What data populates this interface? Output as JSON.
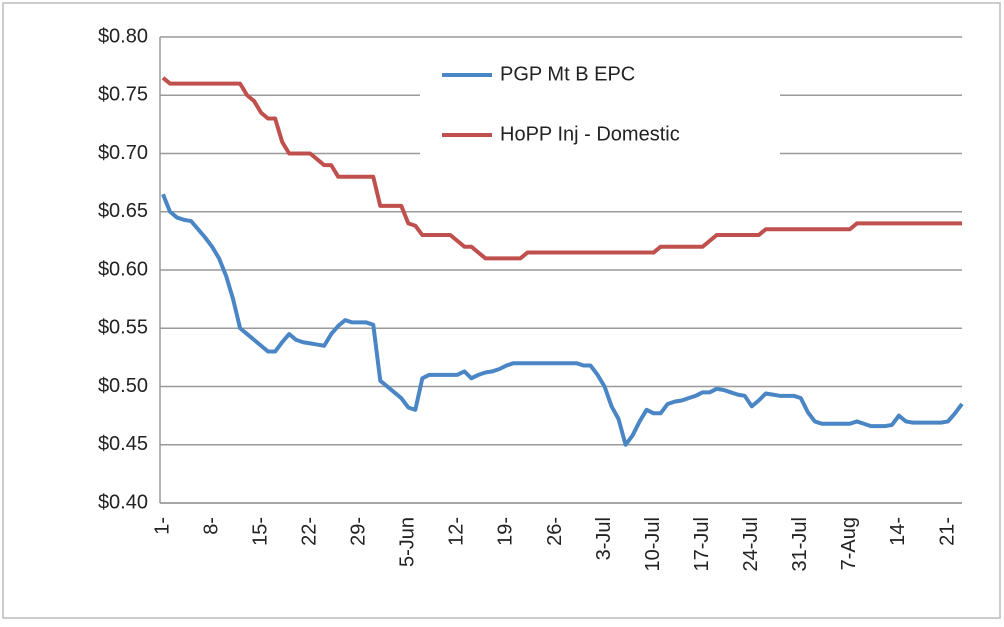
{
  "chart_data": {
    "type": "line",
    "categories": [
      "1-",
      null,
      null,
      null,
      null,
      null,
      null,
      "8-",
      null,
      null,
      null,
      null,
      null,
      null,
      "15-",
      null,
      null,
      null,
      null,
      null,
      null,
      "22-",
      null,
      null,
      null,
      null,
      null,
      null,
      "29-",
      null,
      null,
      null,
      null,
      null,
      null,
      "5-Jun",
      null,
      null,
      null,
      null,
      null,
      null,
      "12-",
      null,
      null,
      null,
      null,
      null,
      null,
      "19-",
      null,
      null,
      null,
      null,
      null,
      null,
      "26-",
      null,
      null,
      null,
      null,
      null,
      null,
      "3-Jul",
      null,
      null,
      null,
      null,
      null,
      null,
      "10-Jul",
      null,
      null,
      null,
      null,
      null,
      null,
      "17-Jul",
      null,
      null,
      null,
      null,
      null,
      null,
      "24-Jul",
      null,
      null,
      null,
      null,
      null,
      null,
      "31-Jul",
      null,
      null,
      null,
      null,
      null,
      null,
      "7-Aug",
      null,
      null,
      null,
      null,
      null,
      null,
      "14-",
      null,
      null,
      null,
      null,
      null,
      null,
      "21-",
      null,
      null
    ],
    "series": [
      {
        "name": "PGP Mt B EPC",
        "color": "#4a86c5",
        "values": [
          0.665,
          0.65,
          0.645,
          0.643,
          0.642,
          0.635,
          0.628,
          0.62,
          0.61,
          0.595,
          0.575,
          0.55,
          0.545,
          0.54,
          0.535,
          0.53,
          0.53,
          0.538,
          0.545,
          0.54,
          0.538,
          0.537,
          0.536,
          0.535,
          0.545,
          0.552,
          0.557,
          0.555,
          0.555,
          0.555,
          0.553,
          0.505,
          0.5,
          0.495,
          0.49,
          0.482,
          0.48,
          0.507,
          0.51,
          0.51,
          0.51,
          0.51,
          0.51,
          0.513,
          0.507,
          0.51,
          0.512,
          0.513,
          0.515,
          0.518,
          0.52,
          0.52,
          0.52,
          0.52,
          0.52,
          0.52,
          0.52,
          0.52,
          0.52,
          0.52,
          0.518,
          0.518,
          0.51,
          0.5,
          0.483,
          0.472,
          0.45,
          0.458,
          0.47,
          0.48,
          0.477,
          0.477,
          0.485,
          0.487,
          0.488,
          0.49,
          0.492,
          0.495,
          0.495,
          0.498,
          0.497,
          0.495,
          0.493,
          0.492,
          0.483,
          0.488,
          0.494,
          0.493,
          0.492,
          0.492,
          0.492,
          0.49,
          0.478,
          0.47,
          0.468,
          0.468,
          0.468,
          0.468,
          0.468,
          0.47,
          0.468,
          0.466,
          0.466,
          0.466,
          0.467,
          0.475,
          0.47,
          0.469,
          0.469,
          0.469,
          0.469,
          0.469,
          0.47,
          0.477,
          0.485
        ]
      },
      {
        "name": "HoPP Inj - Domestic",
        "color": "#c0504d",
        "values": [
          0.765,
          0.76,
          0.76,
          0.76,
          0.76,
          0.76,
          0.76,
          0.76,
          0.76,
          0.76,
          0.76,
          0.76,
          0.75,
          0.745,
          0.735,
          0.73,
          0.73,
          0.71,
          0.7,
          0.7,
          0.7,
          0.7,
          0.695,
          0.69,
          0.69,
          0.68,
          0.68,
          0.68,
          0.68,
          0.68,
          0.68,
          0.655,
          0.655,
          0.655,
          0.655,
          0.64,
          0.638,
          0.63,
          0.63,
          0.63,
          0.63,
          0.63,
          0.625,
          0.62,
          0.62,
          0.615,
          0.61,
          0.61,
          0.61,
          0.61,
          0.61,
          0.61,
          0.615,
          0.615,
          0.615,
          0.615,
          0.615,
          0.615,
          0.615,
          0.615,
          0.615,
          0.615,
          0.615,
          0.615,
          0.615,
          0.615,
          0.615,
          0.615,
          0.615,
          0.615,
          0.615,
          0.62,
          0.62,
          0.62,
          0.62,
          0.62,
          0.62,
          0.62,
          0.625,
          0.63,
          0.63,
          0.63,
          0.63,
          0.63,
          0.63,
          0.63,
          0.635,
          0.635,
          0.635,
          0.635,
          0.635,
          0.635,
          0.635,
          0.635,
          0.635,
          0.635,
          0.635,
          0.635,
          0.635,
          0.64,
          0.64,
          0.64,
          0.64,
          0.64,
          0.64,
          0.64,
          0.64,
          0.64,
          0.64,
          0.64,
          0.64,
          0.64,
          0.64,
          0.64,
          0.64
        ]
      }
    ],
    "ylim": [
      0.4,
      0.8
    ],
    "yticks": [
      {
        "value": 0.4,
        "label": "$0.40"
      },
      {
        "value": 0.45,
        "label": "$0.45"
      },
      {
        "value": 0.5,
        "label": "$0.50"
      },
      {
        "value": 0.55,
        "label": "$0.55"
      },
      {
        "value": 0.6,
        "label": "$0.60"
      },
      {
        "value": 0.65,
        "label": "$0.65"
      },
      {
        "value": 0.7,
        "label": "$0.70"
      },
      {
        "value": 0.75,
        "label": "$0.75"
      },
      {
        "value": 0.8,
        "label": "$0.80"
      }
    ],
    "grid": true,
    "legend": "top"
  }
}
